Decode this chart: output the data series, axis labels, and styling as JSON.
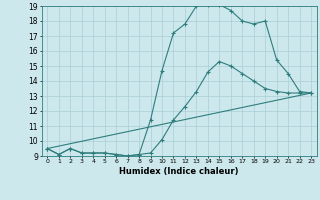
{
  "title": "",
  "xlabel": "Humidex (Indice chaleur)",
  "ylabel": "",
  "xlim": [
    -0.5,
    23.5
  ],
  "ylim": [
    9,
    19
  ],
  "xticks": [
    0,
    1,
    2,
    3,
    4,
    5,
    6,
    7,
    8,
    9,
    10,
    11,
    12,
    13,
    14,
    15,
    16,
    17,
    18,
    19,
    20,
    21,
    22,
    23
  ],
  "yticks": [
    9,
    10,
    11,
    12,
    13,
    14,
    15,
    16,
    17,
    18,
    19
  ],
  "bg_color": "#cce8ec",
  "line_color": "#2e7d7d",
  "grid_color": "#aacdd4",
  "line1_x": [
    0,
    1,
    2,
    3,
    4,
    5,
    6,
    7,
    8,
    9,
    10,
    11,
    12,
    13,
    14,
    15,
    16,
    17,
    18,
    19,
    20,
    21,
    22,
    23
  ],
  "line1_y": [
    9.5,
    9.1,
    9.5,
    9.2,
    9.2,
    9.2,
    9.1,
    9.0,
    9.1,
    9.2,
    10.1,
    11.4,
    12.3,
    13.3,
    14.6,
    15.3,
    15.0,
    14.5,
    14.0,
    13.5,
    13.3,
    13.2,
    13.2,
    13.2
  ],
  "line2_x": [
    0,
    1,
    2,
    3,
    4,
    5,
    6,
    7,
    8,
    9,
    10,
    11,
    12,
    13,
    14,
    15,
    16,
    17,
    18,
    19,
    20,
    21,
    22,
    23
  ],
  "line2_y": [
    9.5,
    9.1,
    9.5,
    9.2,
    9.2,
    9.2,
    9.1,
    9.0,
    9.1,
    11.4,
    14.7,
    17.2,
    17.8,
    19.0,
    19.1,
    19.1,
    18.7,
    18.0,
    17.8,
    18.0,
    15.4,
    14.5,
    13.3,
    13.2
  ],
  "line3_x": [
    0,
    23
  ],
  "line3_y": [
    9.5,
    13.2
  ]
}
